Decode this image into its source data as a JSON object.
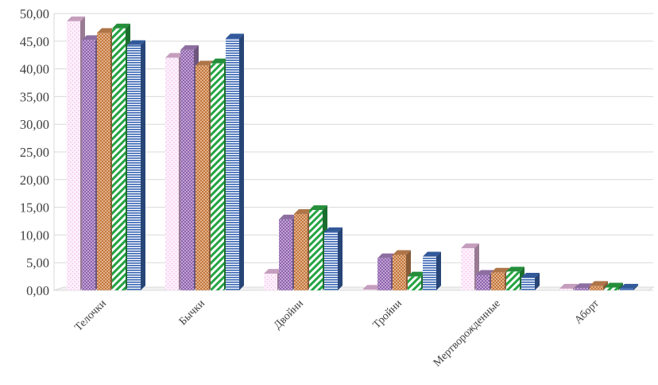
{
  "chart_data": {
    "type": "bar",
    "title": "",
    "xlabel": "",
    "ylabel": "",
    "ylim": [
      0,
      50
    ],
    "y_ticks": [
      "0,00",
      "5,00",
      "10,00",
      "15,00",
      "20,00",
      "25,00",
      "30,00",
      "35,00",
      "40,00",
      "45,00",
      "50,00"
    ],
    "grid": true,
    "legend": "none",
    "style": "3d-clustered-column",
    "categories": [
      "Телочки",
      "Бычки",
      "Двойни",
      "Тройни",
      "Мертворожденные",
      "Аборт"
    ],
    "series": [
      {
        "values": [
          48.6,
          42.0,
          3.0,
          0.1,
          7.6,
          0.3
        ],
        "color": "#f6c6ee",
        "pattern": "dots-light"
      },
      {
        "values": [
          45.2,
          43.4,
          12.8,
          5.8,
          2.8,
          0.4
        ],
        "color": "#b089c9",
        "pattern": "dots-dense"
      },
      {
        "values": [
          46.5,
          40.6,
          13.8,
          6.4,
          3.2,
          0.8
        ],
        "color": "#d9925a",
        "pattern": "dots-dense"
      },
      {
        "values": [
          47.3,
          41.0,
          14.5,
          2.5,
          3.4,
          0.5
        ],
        "color": "#2db24a",
        "pattern": "diagonal"
      },
      {
        "values": [
          44.3,
          45.5,
          10.5,
          6.1,
          2.3,
          0.3
        ],
        "color": "#3f6fc0",
        "pattern": "horizontal"
      }
    ]
  }
}
